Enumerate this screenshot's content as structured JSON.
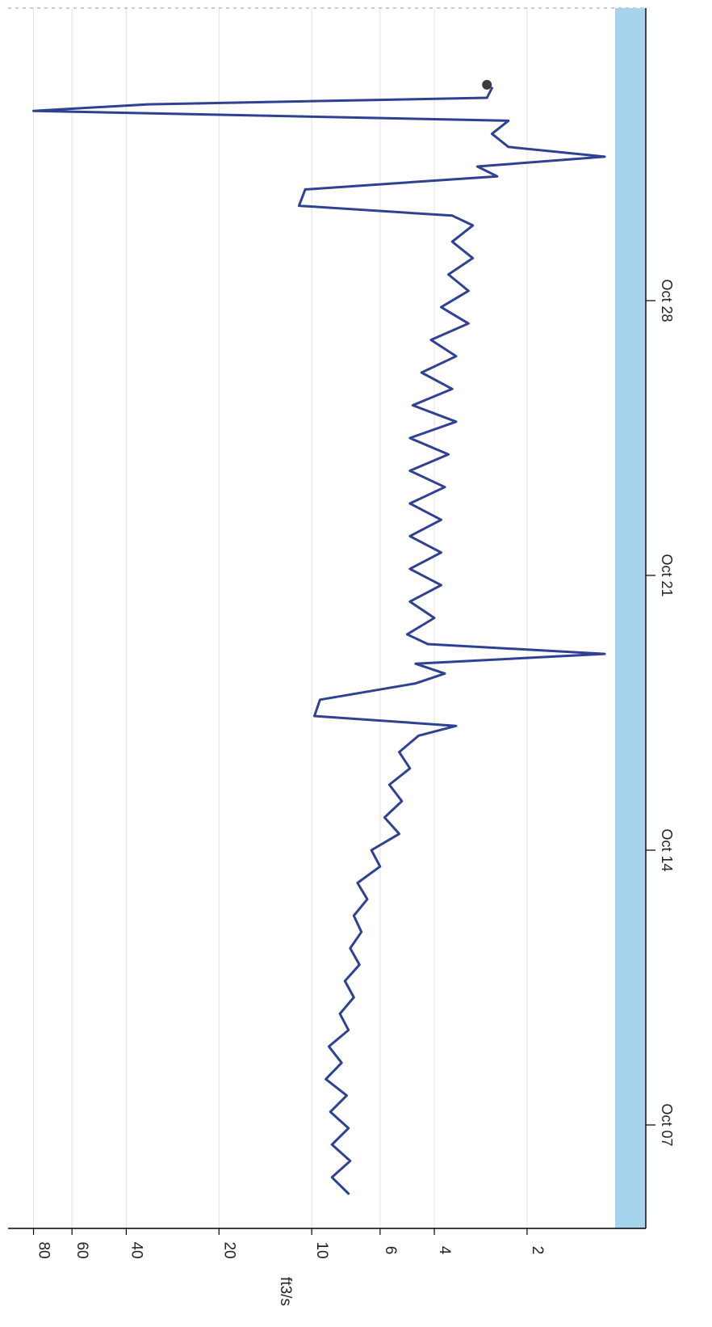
{
  "chart_data": {
    "type": "line",
    "orientation": "rotated-90-clockwise",
    "title": "",
    "ylabel": "ft3/s",
    "xlabel": "",
    "y_scale": "log",
    "ylim": [
      1.1,
      90
    ],
    "y_ticks": [
      2,
      4,
      6,
      10,
      20,
      40,
      60,
      80
    ],
    "y_tick_labels": [
      "2",
      "4",
      "6",
      "10",
      "20",
      "40",
      "60",
      "80"
    ],
    "x_ticks": [
      "2023-10-07",
      "2023-10-14",
      "2023-10-21",
      "2023-10-28"
    ],
    "x_tick_labels": [
      "Oct 07",
      "Oct 14",
      "Oct 21",
      "Oct 28"
    ],
    "x_range": [
      "2023-10-05",
      "2023-11-02 12:00"
    ],
    "grid": true,
    "colors": {
      "line": "#2f4192",
      "band": "#a6d4ef",
      "marker": "#3b3b3b",
      "grid": "#e2e2e2",
      "axis": "#000000"
    },
    "series": [
      {
        "points": [
          [
            "2023-10-05 06:00",
            7.6
          ],
          [
            "2023-10-05 16:00",
            8.6
          ],
          [
            "2023-10-06 02:00",
            7.5
          ],
          [
            "2023-10-06 12:00",
            8.6
          ],
          [
            "2023-10-06 22:00",
            7.6
          ],
          [
            "2023-10-07 08:00",
            8.7
          ],
          [
            "2023-10-07 18:00",
            7.7
          ],
          [
            "2023-10-08 04:00",
            9.0
          ],
          [
            "2023-10-08 14:00",
            8.0
          ],
          [
            "2023-10-09 00:00",
            8.8
          ],
          [
            "2023-10-09 10:00",
            7.6
          ],
          [
            "2023-10-09 20:00",
            8.1
          ],
          [
            "2023-10-10 06:00",
            7.3
          ],
          [
            "2023-10-10 16:00",
            7.8
          ],
          [
            "2023-10-11 02:00",
            7.0
          ],
          [
            "2023-10-11 12:00",
            7.5
          ],
          [
            "2023-10-11 22:00",
            6.9
          ],
          [
            "2023-10-12 08:00",
            7.3
          ],
          [
            "2023-10-12 18:00",
            6.6
          ],
          [
            "2023-10-13 04:00",
            7.1
          ],
          [
            "2023-10-13 14:00",
            6.0
          ],
          [
            "2023-10-14 00:00",
            6.4
          ],
          [
            "2023-10-14 10:00",
            5.2
          ],
          [
            "2023-10-14 20:00",
            5.8
          ],
          [
            "2023-10-15 06:00",
            5.1
          ],
          [
            "2023-10-15 16:00",
            5.6
          ],
          [
            "2023-10-16 02:00",
            4.8
          ],
          [
            "2023-10-16 12:00",
            5.2
          ],
          [
            "2023-10-16 22:00",
            4.5
          ],
          [
            "2023-10-17 04:00",
            3.4
          ],
          [
            "2023-10-17 10:00",
            9.8
          ],
          [
            "2023-10-17 20:00",
            9.4
          ],
          [
            "2023-10-18 06:00",
            4.6
          ],
          [
            "2023-10-18 12:00",
            3.7
          ],
          [
            "2023-10-18 18:00",
            4.6
          ],
          [
            "2023-10-19 00:00",
            1.12
          ],
          [
            "2023-10-19 06:00",
            4.2
          ],
          [
            "2023-10-19 12:00",
            4.9
          ],
          [
            "2023-10-19 22:00",
            4.0
          ],
          [
            "2023-10-20 08:00",
            4.8
          ],
          [
            "2023-10-20 18:00",
            3.8
          ],
          [
            "2023-10-21 04:00",
            4.8
          ],
          [
            "2023-10-21 14:00",
            3.8
          ],
          [
            "2023-10-22 00:00",
            4.8
          ],
          [
            "2023-10-22 10:00",
            3.8
          ],
          [
            "2023-10-22 20:00",
            4.8
          ],
          [
            "2023-10-23 06:00",
            3.7
          ],
          [
            "2023-10-23 16:00",
            4.8
          ],
          [
            "2023-10-24 02:00",
            3.6
          ],
          [
            "2023-10-24 12:00",
            4.8
          ],
          [
            "2023-10-24 22:00",
            3.4
          ],
          [
            "2023-10-25 08:00",
            4.7
          ],
          [
            "2023-10-25 18:00",
            3.5
          ],
          [
            "2023-10-26 04:00",
            4.4
          ],
          [
            "2023-10-26 14:00",
            3.4
          ],
          [
            "2023-10-27 00:00",
            4.1
          ],
          [
            "2023-10-27 10:00",
            3.1
          ],
          [
            "2023-10-27 20:00",
            3.8
          ],
          [
            "2023-10-28 06:00",
            3.1
          ],
          [
            "2023-10-28 16:00",
            3.6
          ],
          [
            "2023-10-29 02:00",
            3.0
          ],
          [
            "2023-10-29 12:00",
            3.5
          ],
          [
            "2023-10-29 22:00",
            3.0
          ],
          [
            "2023-10-30 04:00",
            3.5
          ],
          [
            "2023-10-30 10:00",
            11.0
          ],
          [
            "2023-10-30 20:00",
            10.5
          ],
          [
            "2023-10-31 04:00",
            2.5
          ],
          [
            "2023-10-31 10:00",
            2.9
          ],
          [
            "2023-10-31 16:00",
            1.12
          ],
          [
            "2023-10-31 22:00",
            2.3
          ],
          [
            "2023-11-01 06:00",
            2.6
          ],
          [
            "2023-11-01 14:00",
            2.3
          ],
          [
            "2023-11-01 20:00",
            80.0
          ],
          [
            "2023-11-02 00:00",
            34.0
          ],
          [
            "2023-11-02 04:00",
            2.7
          ],
          [
            "2023-11-02 10:00",
            2.6
          ]
        ]
      }
    ],
    "last_point": [
      "2023-11-02 12:00",
      2.7
    ]
  }
}
